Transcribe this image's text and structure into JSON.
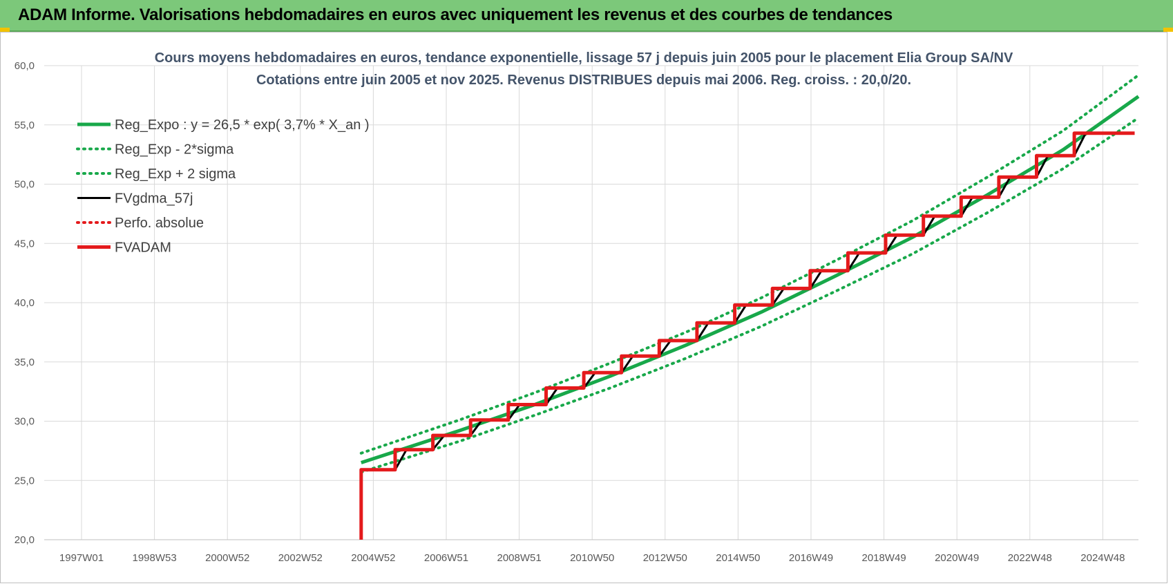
{
  "banner": {
    "title": "ADAM Informe. Valorisations hebdomadaires en euros avec uniquement les revenus et des courbes de tendances"
  },
  "colors": {
    "banner": "#7cc87a",
    "reg_expo": "#18a84a",
    "reg_sigma": "#18a84a",
    "fvgdma": "#000000",
    "perfo": "#e41a1c",
    "fvadam": "#e41a1c"
  },
  "chart_data": {
    "type": "line",
    "title": "Cours moyens hebdomadaires en euros, tendance exponentielle, lissage 57 j depuis juin 2005 pour le placement Elia Group SA/NV",
    "subtitle": "Cotations entre juin 2005 et nov 2025. Revenus DISTRIBUES depuis mai 2006. Reg. croiss. : 20,0/20.",
    "xlabel": "",
    "ylabel": "",
    "x_ticks": [
      "1997W01",
      "1998W53",
      "2000W52",
      "2002W52",
      "2004W52",
      "2006W51",
      "2008W51",
      "2010W50",
      "2012W50",
      "2014W50",
      "2016W49",
      "2018W49",
      "2020W49",
      "2022W48",
      "2024W48"
    ],
    "x_range": [
      1997.0,
      2026.0
    ],
    "ylim": [
      20,
      60
    ],
    "y_ticks": [
      "20,0",
      "25,0",
      "30,0",
      "35,0",
      "40,0",
      "45,0",
      "50,0",
      "55,0",
      "60,0"
    ],
    "grid": true,
    "legend_position": "top-left",
    "series": [
      {
        "name": "Reg_Expo : y = 26,5 * exp( 3,7% *  X_an )",
        "style": "solid-thick",
        "x": [
          2005.4,
          2008,
          2010,
          2012,
          2014,
          2016,
          2018,
          2020,
          2022,
          2024,
          2026
        ],
        "y": [
          26.5,
          29.2,
          31.4,
          33.8,
          36.4,
          39.2,
          42.3,
          45.5,
          49.1,
          52.9,
          57.4
        ]
      },
      {
        "name": "Reg_Exp - 2*sigma",
        "style": "dotted",
        "x": [
          2005.4,
          2008,
          2010,
          2012,
          2014,
          2016,
          2018,
          2020,
          2022,
          2024,
          2026
        ],
        "y": [
          25.7,
          28.3,
          30.5,
          32.8,
          35.3,
          38.0,
          41.0,
          44.1,
          47.6,
          51.3,
          55.6
        ]
      },
      {
        "name": "Reg_Exp + 2 sigma",
        "style": "dotted",
        "x": [
          2005.4,
          2008,
          2010,
          2012,
          2014,
          2016,
          2018,
          2020,
          2022,
          2024,
          2026
        ],
        "y": [
          27.3,
          30.1,
          32.4,
          34.9,
          37.5,
          40.4,
          43.6,
          46.9,
          50.6,
          54.5,
          59.2
        ]
      },
      {
        "name": "FVgdma_57j",
        "style": "solid",
        "x": [
          2005.4,
          2006.3,
          2006.6,
          2007.3,
          2007.6,
          2008.3,
          2008.6,
          2009.3,
          2009.6,
          2010.3,
          2010.6,
          2011.3,
          2011.6,
          2012.3,
          2012.6,
          2013.3,
          2013.6,
          2014.3,
          2014.6,
          2015.3,
          2015.6,
          2016.3,
          2016.6,
          2017.3,
          2017.6,
          2018.3,
          2018.6,
          2019.3,
          2019.6,
          2020.3,
          2020.6,
          2021.3,
          2021.6,
          2022.3,
          2022.6,
          2023.3,
          2023.6,
          2024.3,
          2024.6,
          2025.9
        ],
        "y": [
          25.9,
          25.9,
          27.6,
          27.6,
          28.8,
          28.8,
          30.1,
          30.1,
          31.4,
          31.4,
          32.8,
          32.8,
          34.1,
          34.1,
          35.5,
          35.5,
          36.8,
          36.8,
          38.3,
          38.3,
          39.8,
          39.8,
          41.2,
          41.2,
          42.7,
          42.7,
          44.2,
          44.2,
          45.7,
          45.7,
          47.3,
          47.3,
          48.9,
          48.9,
          50.6,
          50.6,
          52.4,
          52.4,
          54.3,
          54.3
        ]
      },
      {
        "name": "Perfo. absolue",
        "style": "dotted",
        "x": [],
        "y": []
      },
      {
        "name": "FVADAM",
        "style": "solid-thick-steps",
        "x": [
          2005.4,
          2005.4,
          2006.3,
          2006.3,
          2007.3,
          2007.3,
          2008.3,
          2008.3,
          2009.3,
          2009.3,
          2010.3,
          2010.3,
          2011.3,
          2011.3,
          2012.3,
          2012.3,
          2013.3,
          2013.3,
          2014.3,
          2014.3,
          2015.3,
          2015.3,
          2016.3,
          2016.3,
          2017.3,
          2017.3,
          2018.3,
          2018.3,
          2019.3,
          2019.3,
          2020.3,
          2020.3,
          2021.3,
          2021.3,
          2022.3,
          2022.3,
          2023.3,
          2023.3,
          2024.3,
          2024.3,
          2025.9
        ],
        "y": [
          20.0,
          25.9,
          25.9,
          27.6,
          27.6,
          28.8,
          28.8,
          30.1,
          30.1,
          31.4,
          31.4,
          32.8,
          32.8,
          34.1,
          34.1,
          35.5,
          35.5,
          36.8,
          36.8,
          38.3,
          38.3,
          39.8,
          39.8,
          41.2,
          41.2,
          42.7,
          42.7,
          44.2,
          44.2,
          45.7,
          45.7,
          47.3,
          47.3,
          48.9,
          48.9,
          50.6,
          50.6,
          52.4,
          52.4,
          54.3,
          54.3
        ]
      }
    ]
  }
}
